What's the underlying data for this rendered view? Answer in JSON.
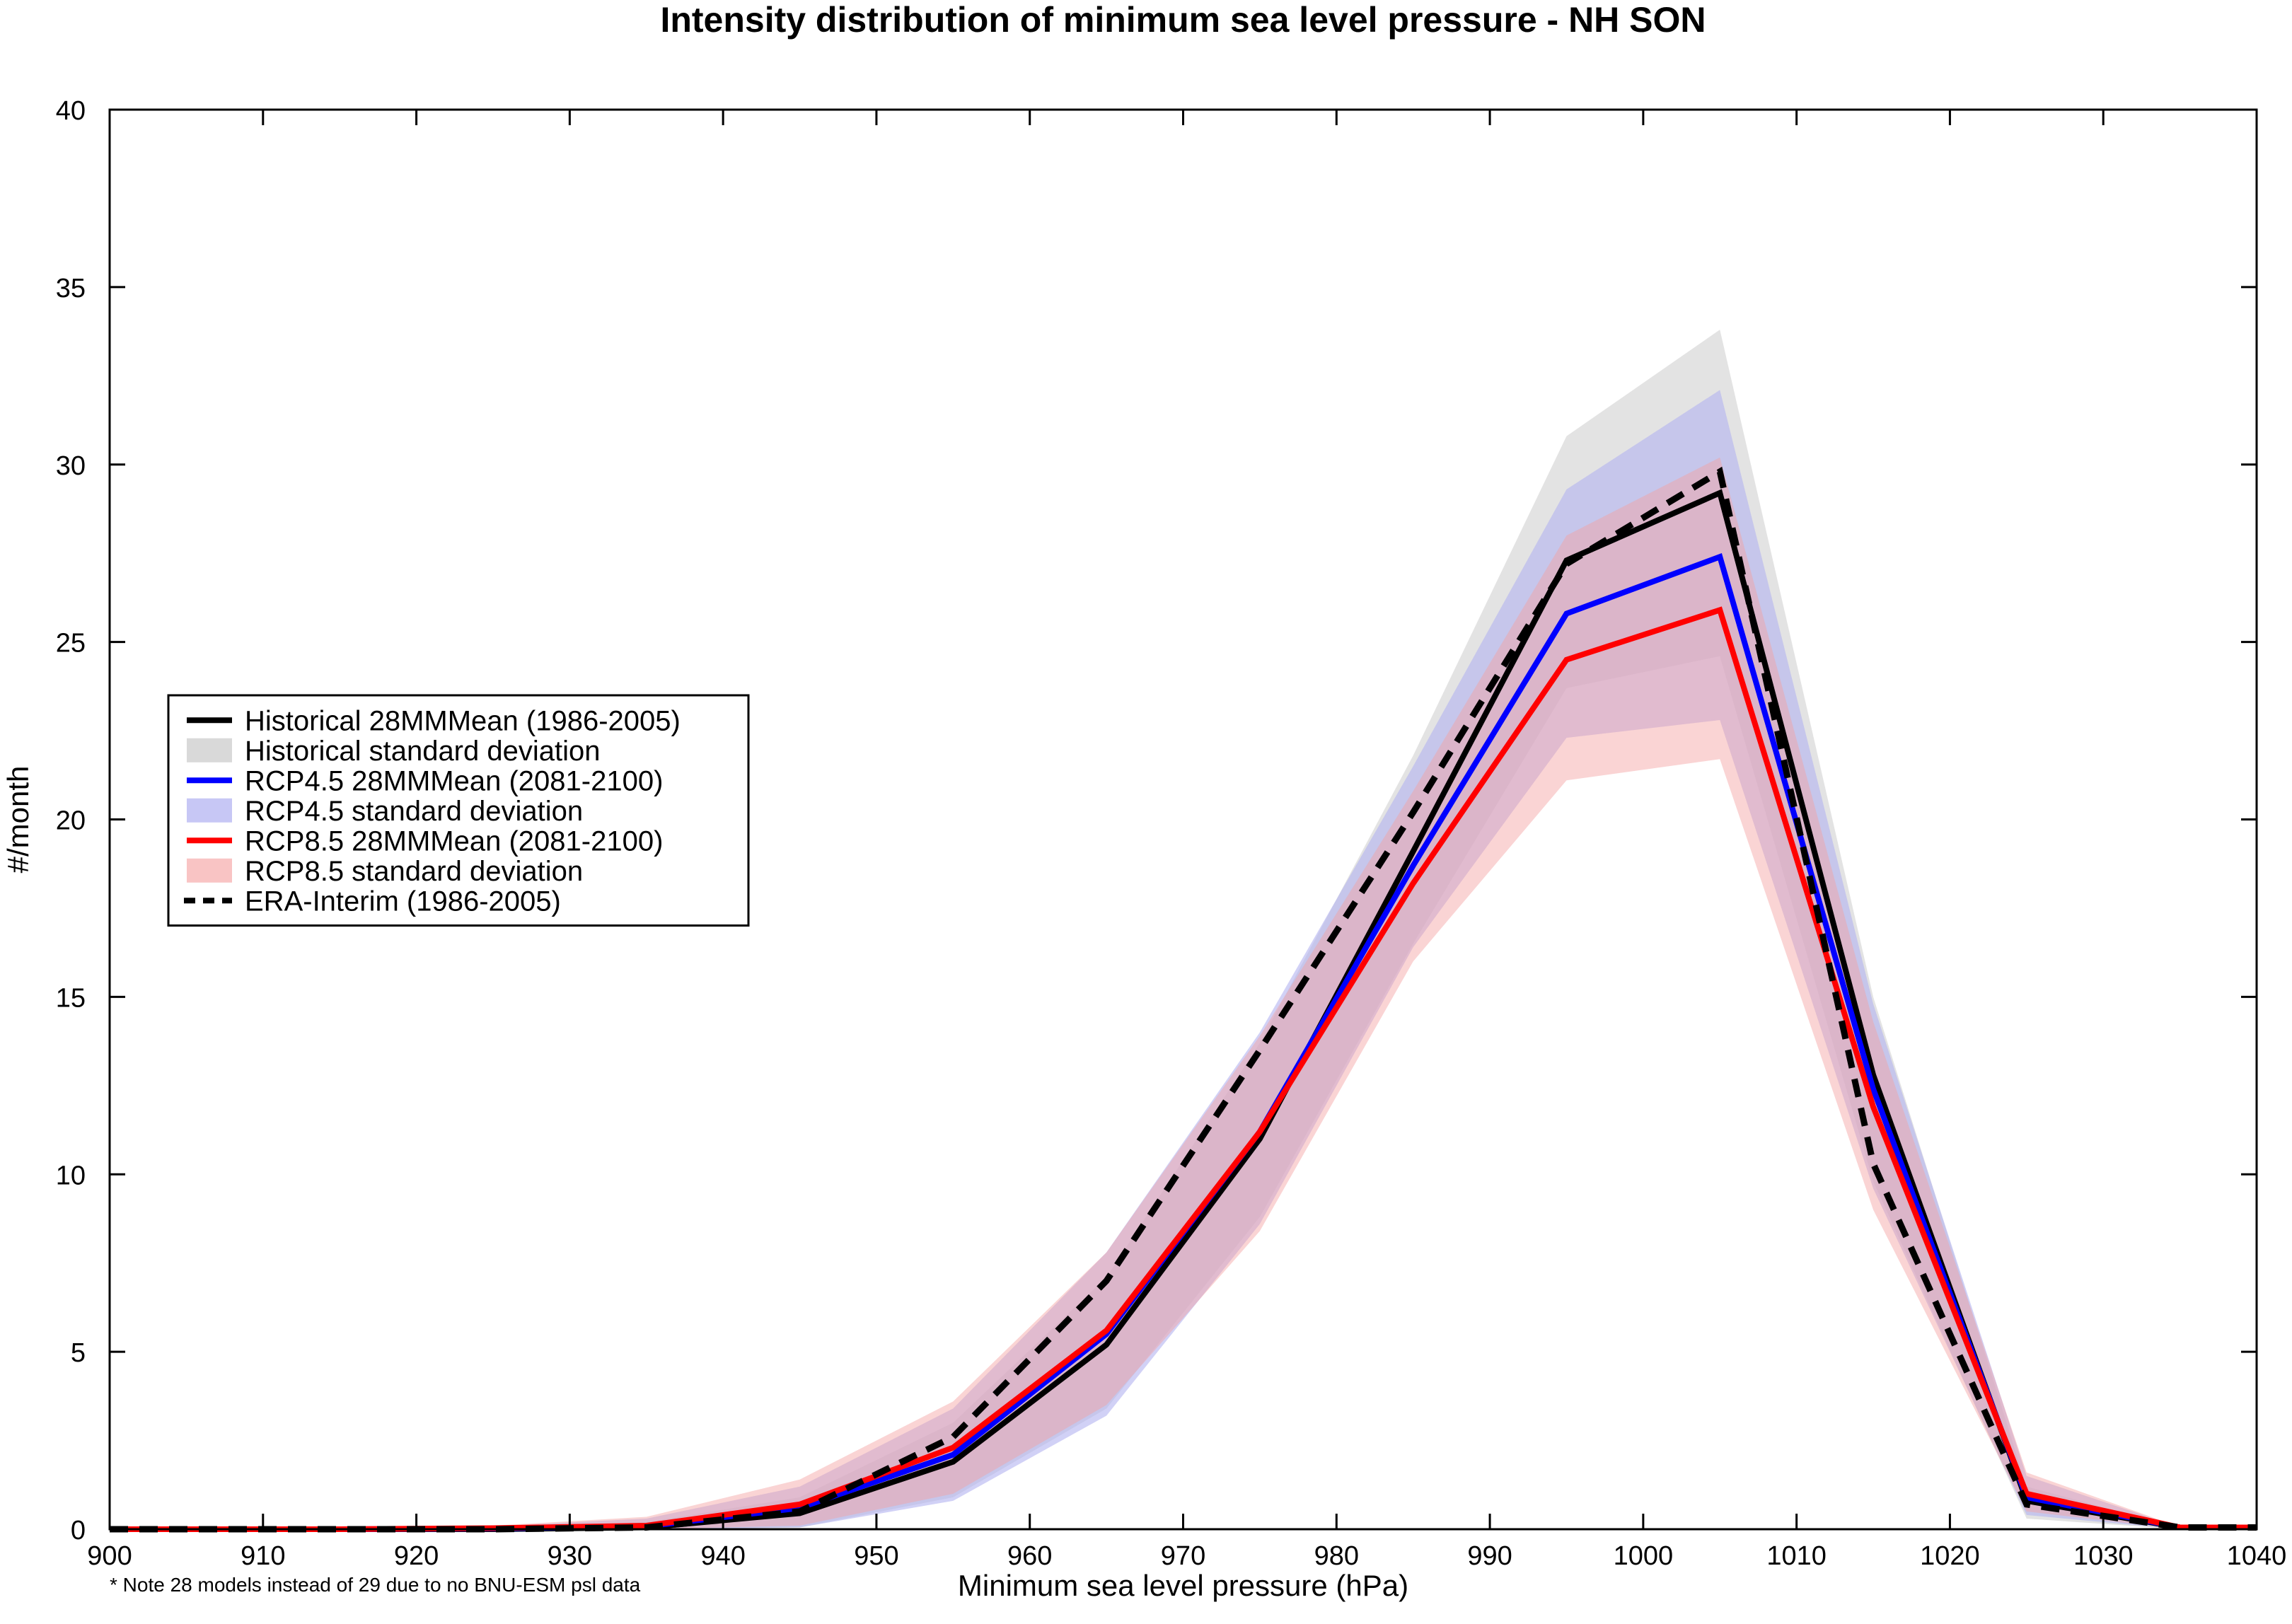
{
  "chart_data": {
    "type": "line",
    "title": "Intensity distribution of minimum sea level pressure - NH SON",
    "xlabel": "Minimum sea level pressure (hPa)",
    "ylabel": "#/month",
    "note": "* Note 28 models instead of 29 due to no BNU-ESM psl data",
    "xlim": [
      900,
      1040
    ],
    "ylim": [
      0,
      40
    ],
    "xticks": [
      "900",
      "910",
      "920",
      "930",
      "940",
      "950",
      "960",
      "970",
      "980",
      "990",
      "1000",
      "1010",
      "1020",
      "1030",
      "1040"
    ],
    "yticks": [
      "0",
      "5",
      "10",
      "15",
      "20",
      "25",
      "30",
      "35",
      "40"
    ],
    "x": [
      905,
      915,
      925,
      935,
      945,
      955,
      965,
      975,
      985,
      995,
      1005,
      1015,
      1025,
      1035
    ],
    "bands": [
      {
        "name": "Historical standard deviation",
        "color": "#d9d9d9",
        "opacity": 0.75,
        "lower": [
          0,
          0,
          0,
          0,
          0.05,
          0.9,
          3.4,
          8.8,
          16.5,
          23.7,
          24.6,
          9.8,
          0.3,
          0
        ],
        "upper": [
          0.02,
          0.02,
          0.06,
          0.2,
          0.9,
          3.0,
          7.1,
          13.7,
          21.8,
          30.8,
          33.8,
          15.0,
          1.2,
          0.05
        ]
      },
      {
        "name": "RCP4.5 standard deviation",
        "color": "#b2b2f0",
        "opacity": 0.6,
        "lower": [
          0,
          0,
          0,
          0,
          0.05,
          0.8,
          3.2,
          8.6,
          16.4,
          22.3,
          22.8,
          9.6,
          0.4,
          0
        ],
        "upper": [
          0.02,
          0.02,
          0.08,
          0.3,
          1.2,
          3.4,
          7.8,
          14.0,
          21.5,
          29.3,
          32.1,
          14.8,
          1.5,
          0.05
        ]
      },
      {
        "name": "RCP8.5 standard deviation",
        "color": "#f5a0a0",
        "opacity": 0.45,
        "lower": [
          0,
          0,
          0,
          0,
          0.1,
          1.0,
          3.5,
          8.4,
          16.0,
          21.1,
          21.7,
          9.0,
          0.5,
          0
        ],
        "upper": [
          0.02,
          0.03,
          0.1,
          0.35,
          1.4,
          3.6,
          7.8,
          13.9,
          20.8,
          28.0,
          30.2,
          14.3,
          1.6,
          0.06
        ]
      }
    ],
    "series": [
      {
        "name": "Historical 28MMMean (1986-2005)",
        "color": "#000000",
        "dash": false,
        "values": [
          0,
          0,
          0,
          0.05,
          0.45,
          1.9,
          5.2,
          11.0,
          19.1,
          27.3,
          29.2,
          12.8,
          0.8,
          0.05
        ]
      },
      {
        "name": "RCP4.5 28MMMean (2081-2100)",
        "color": "#0000ff",
        "dash": false,
        "values": [
          0,
          0,
          0.02,
          0.08,
          0.6,
          2.1,
          5.5,
          11.2,
          18.7,
          25.8,
          27.4,
          12.4,
          0.9,
          0.05
        ]
      },
      {
        "name": "RCP8.5 28MMMean (2081-2100)",
        "color": "#ff0000",
        "dash": false,
        "values": [
          0,
          0,
          0.03,
          0.1,
          0.7,
          2.3,
          5.6,
          11.2,
          18.2,
          24.5,
          25.9,
          11.9,
          1.0,
          0.05
        ]
      },
      {
        "name": "ERA-Interim (1986-2005)",
        "color": "#000000",
        "dash": true,
        "values": [
          0,
          0,
          0,
          0.05,
          0.5,
          2.6,
          7.0,
          13.5,
          20.2,
          27.2,
          29.8,
          10.3,
          0.7,
          0.05
        ]
      }
    ],
    "legend": {
      "placement": "left-middle",
      "entries": [
        {
          "label": "Historical 28MMMean (1986-2005)",
          "kind": "line",
          "color": "#000000",
          "dash": false
        },
        {
          "label": "Historical standard deviation",
          "kind": "patch",
          "color": "#d9d9d9"
        },
        {
          "label": "RCP4.5 28MMMean (2081-2100)",
          "kind": "line",
          "color": "#0000ff",
          "dash": false
        },
        {
          "label": "RCP4.5 standard deviation",
          "kind": "patch",
          "color": "#c7c7f5"
        },
        {
          "label": "RCP8.5 28MMMean (2081-2100)",
          "kind": "line",
          "color": "#ff0000",
          "dash": false
        },
        {
          "label": "RCP8.5 standard deviation",
          "kind": "patch",
          "color": "#f9c4c4"
        },
        {
          "label": "ERA-Interim (1986-2005)",
          "kind": "line",
          "color": "#000000",
          "dash": true
        }
      ]
    },
    "grid": false
  }
}
